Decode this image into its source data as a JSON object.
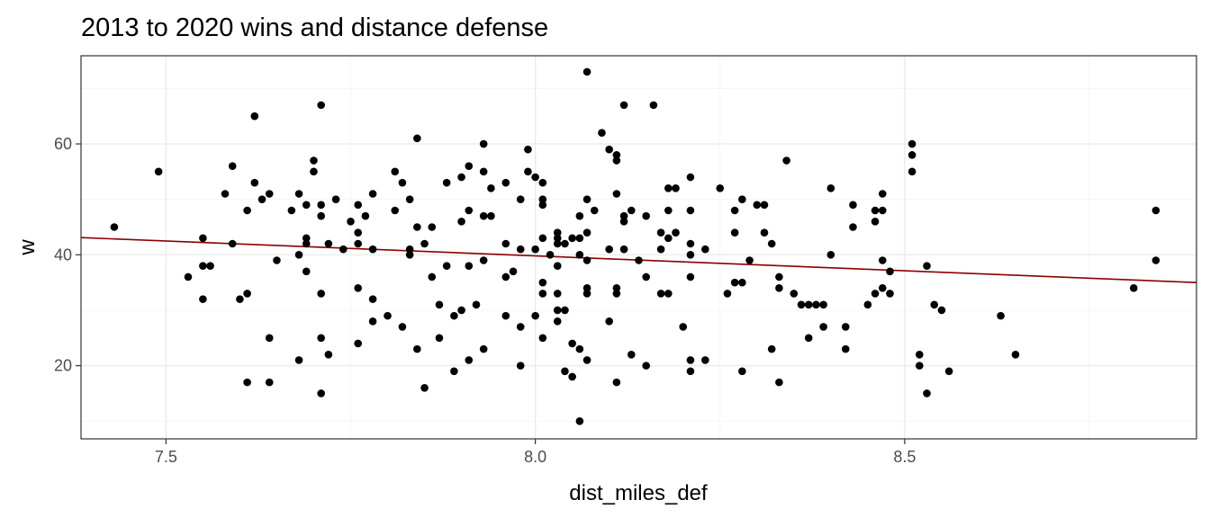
{
  "chart_data": {
    "type": "scatter",
    "title": "2013 to 2020 wins and distance defense",
    "xlabel": "dist_miles_def",
    "ylabel": "w",
    "xlim": [
      7.385,
      8.895
    ],
    "ylim": [
      6.8,
      75.9
    ],
    "x_ticks": [
      7.5,
      8.0,
      8.5
    ],
    "x_tick_labels": [
      "7.5",
      "8.0",
      "8.5"
    ],
    "y_ticks": [
      20,
      40,
      60
    ],
    "y_tick_labels": [
      "20",
      "40",
      "60"
    ],
    "grid": true,
    "legend": "none",
    "point_color": "#000000",
    "trend_line": {
      "color": "#8b0000",
      "x": [
        7.385,
        8.895
      ],
      "y": [
        43.1,
        35.0
      ]
    },
    "series": [
      {
        "values": [
          [
            7.43,
            45
          ],
          [
            7.49,
            55
          ],
          [
            7.53,
            36
          ],
          [
            7.55,
            43
          ],
          [
            7.55,
            38
          ],
          [
            7.55,
            32
          ],
          [
            7.56,
            38
          ],
          [
            7.58,
            51
          ],
          [
            7.59,
            56
          ],
          [
            7.59,
            42
          ],
          [
            7.6,
            32
          ],
          [
            7.61,
            48
          ],
          [
            7.61,
            33
          ],
          [
            7.61,
            17
          ],
          [
            7.62,
            65
          ],
          [
            7.62,
            53
          ],
          [
            7.63,
            50
          ],
          [
            7.64,
            51
          ],
          [
            7.64,
            25
          ],
          [
            7.64,
            17
          ],
          [
            7.65,
            39
          ],
          [
            7.67,
            48
          ],
          [
            7.68,
            51
          ],
          [
            7.68,
            40
          ],
          [
            7.68,
            21
          ],
          [
            7.69,
            49
          ],
          [
            7.69,
            43
          ],
          [
            7.69,
            42
          ],
          [
            7.69,
            37
          ],
          [
            7.7,
            57
          ],
          [
            7.7,
            55
          ],
          [
            7.71,
            67
          ],
          [
            7.71,
            49
          ],
          [
            7.71,
            47
          ],
          [
            7.71,
            33
          ],
          [
            7.71,
            25
          ],
          [
            7.71,
            15
          ],
          [
            7.72,
            42
          ],
          [
            7.72,
            22
          ],
          [
            7.73,
            50
          ],
          [
            7.74,
            41
          ],
          [
            7.75,
            46
          ],
          [
            7.76,
            49
          ],
          [
            7.76,
            44
          ],
          [
            7.76,
            42
          ],
          [
            7.76,
            34
          ],
          [
            7.76,
            24
          ],
          [
            7.77,
            47
          ],
          [
            7.78,
            51
          ],
          [
            7.78,
            41
          ],
          [
            7.78,
            32
          ],
          [
            7.78,
            28
          ],
          [
            7.8,
            29
          ],
          [
            7.81,
            55
          ],
          [
            7.81,
            48
          ],
          [
            7.82,
            53
          ],
          [
            7.82,
            27
          ],
          [
            7.83,
            50
          ],
          [
            7.83,
            41
          ],
          [
            7.83,
            40
          ],
          [
            7.84,
            61
          ],
          [
            7.84,
            45
          ],
          [
            7.84,
            23
          ],
          [
            7.85,
            42
          ],
          [
            7.85,
            16
          ],
          [
            7.86,
            45
          ],
          [
            7.86,
            36
          ],
          [
            7.87,
            31
          ],
          [
            7.87,
            25
          ],
          [
            7.88,
            53
          ],
          [
            7.88,
            38
          ],
          [
            7.89,
            29
          ],
          [
            7.89,
            19
          ],
          [
            7.9,
            54
          ],
          [
            7.9,
            46
          ],
          [
            7.9,
            30
          ],
          [
            7.91,
            56
          ],
          [
            7.91,
            48
          ],
          [
            7.91,
            38
          ],
          [
            7.91,
            21
          ],
          [
            7.92,
            31
          ],
          [
            7.93,
            60
          ],
          [
            7.93,
            55
          ],
          [
            7.93,
            47
          ],
          [
            7.93,
            39
          ],
          [
            7.93,
            23
          ],
          [
            7.94,
            52
          ],
          [
            7.94,
            47
          ],
          [
            7.96,
            53
          ],
          [
            7.96,
            42
          ],
          [
            7.96,
            36
          ],
          [
            7.96,
            29
          ],
          [
            7.97,
            37
          ],
          [
            7.98,
            50
          ],
          [
            7.98,
            41
          ],
          [
            7.98,
            27
          ],
          [
            7.98,
            20
          ],
          [
            7.99,
            59
          ],
          [
            7.99,
            55
          ],
          [
            8.0,
            54
          ],
          [
            8.0,
            41
          ],
          [
            8.0,
            29
          ],
          [
            8.01,
            53
          ],
          [
            8.01,
            50
          ],
          [
            8.01,
            49
          ],
          [
            8.01,
            43
          ],
          [
            8.01,
            35
          ],
          [
            8.01,
            33
          ],
          [
            8.01,
            25
          ],
          [
            8.02,
            40
          ],
          [
            8.03,
            44
          ],
          [
            8.03,
            43
          ],
          [
            8.03,
            42
          ],
          [
            8.03,
            38
          ],
          [
            8.03,
            33
          ],
          [
            8.03,
            30
          ],
          [
            8.03,
            28
          ],
          [
            8.04,
            42
          ],
          [
            8.04,
            30
          ],
          [
            8.04,
            19
          ],
          [
            8.05,
            43
          ],
          [
            8.05,
            24
          ],
          [
            8.05,
            18
          ],
          [
            8.06,
            47
          ],
          [
            8.06,
            43
          ],
          [
            8.06,
            40
          ],
          [
            8.06,
            23
          ],
          [
            8.06,
            10
          ],
          [
            8.07,
            73
          ],
          [
            8.07,
            50
          ],
          [
            8.07,
            44
          ],
          [
            8.07,
            39
          ],
          [
            8.07,
            34
          ],
          [
            8.07,
            33
          ],
          [
            8.07,
            21
          ],
          [
            8.08,
            48
          ],
          [
            8.09,
            62
          ],
          [
            8.1,
            59
          ],
          [
            8.1,
            41
          ],
          [
            8.1,
            28
          ],
          [
            8.11,
            58
          ],
          [
            8.11,
            57
          ],
          [
            8.11,
            51
          ],
          [
            8.11,
            34
          ],
          [
            8.11,
            33
          ],
          [
            8.11,
            17
          ],
          [
            8.12,
            67
          ],
          [
            8.12,
            47
          ],
          [
            8.12,
            46
          ],
          [
            8.12,
            41
          ],
          [
            8.13,
            48
          ],
          [
            8.13,
            22
          ],
          [
            8.14,
            39
          ],
          [
            8.15,
            47
          ],
          [
            8.15,
            36
          ],
          [
            8.15,
            20
          ],
          [
            8.16,
            67
          ],
          [
            8.17,
            44
          ],
          [
            8.17,
            41
          ],
          [
            8.17,
            33
          ],
          [
            8.18,
            52
          ],
          [
            8.18,
            48
          ],
          [
            8.18,
            43
          ],
          [
            8.18,
            33
          ],
          [
            8.19,
            52
          ],
          [
            8.19,
            44
          ],
          [
            8.2,
            27
          ],
          [
            8.21,
            54
          ],
          [
            8.21,
            48
          ],
          [
            8.21,
            42
          ],
          [
            8.21,
            40
          ],
          [
            8.21,
            36
          ],
          [
            8.21,
            21
          ],
          [
            8.21,
            19
          ],
          [
            8.23,
            41
          ],
          [
            8.23,
            21
          ],
          [
            8.25,
            52
          ],
          [
            8.26,
            33
          ],
          [
            8.27,
            48
          ],
          [
            8.27,
            44
          ],
          [
            8.27,
            35
          ],
          [
            8.28,
            50
          ],
          [
            8.28,
            35
          ],
          [
            8.28,
            19
          ],
          [
            8.29,
            39
          ],
          [
            8.3,
            49
          ],
          [
            8.31,
            49
          ],
          [
            8.31,
            44
          ],
          [
            8.32,
            42
          ],
          [
            8.32,
            23
          ],
          [
            8.33,
            36
          ],
          [
            8.33,
            34
          ],
          [
            8.33,
            17
          ],
          [
            8.34,
            57
          ],
          [
            8.35,
            33
          ],
          [
            8.36,
            31
          ],
          [
            8.37,
            31
          ],
          [
            8.37,
            25
          ],
          [
            8.38,
            31
          ],
          [
            8.39,
            31
          ],
          [
            8.39,
            27
          ],
          [
            8.4,
            52
          ],
          [
            8.4,
            40
          ],
          [
            8.42,
            27
          ],
          [
            8.42,
            23
          ],
          [
            8.43,
            49
          ],
          [
            8.43,
            45
          ],
          [
            8.45,
            31
          ],
          [
            8.46,
            48
          ],
          [
            8.46,
            46
          ],
          [
            8.46,
            33
          ],
          [
            8.47,
            51
          ],
          [
            8.47,
            48
          ],
          [
            8.47,
            39
          ],
          [
            8.47,
            34
          ],
          [
            8.48,
            37
          ],
          [
            8.48,
            33
          ],
          [
            8.51,
            60
          ],
          [
            8.51,
            58
          ],
          [
            8.51,
            55
          ],
          [
            8.52,
            22
          ],
          [
            8.52,
            20
          ],
          [
            8.53,
            38
          ],
          [
            8.53,
            15
          ],
          [
            8.54,
            31
          ],
          [
            8.55,
            30
          ],
          [
            8.56,
            19
          ],
          [
            8.63,
            29
          ],
          [
            8.65,
            22
          ],
          [
            8.81,
            34
          ],
          [
            8.84,
            48
          ],
          [
            8.84,
            39
          ]
        ]
      }
    ]
  }
}
